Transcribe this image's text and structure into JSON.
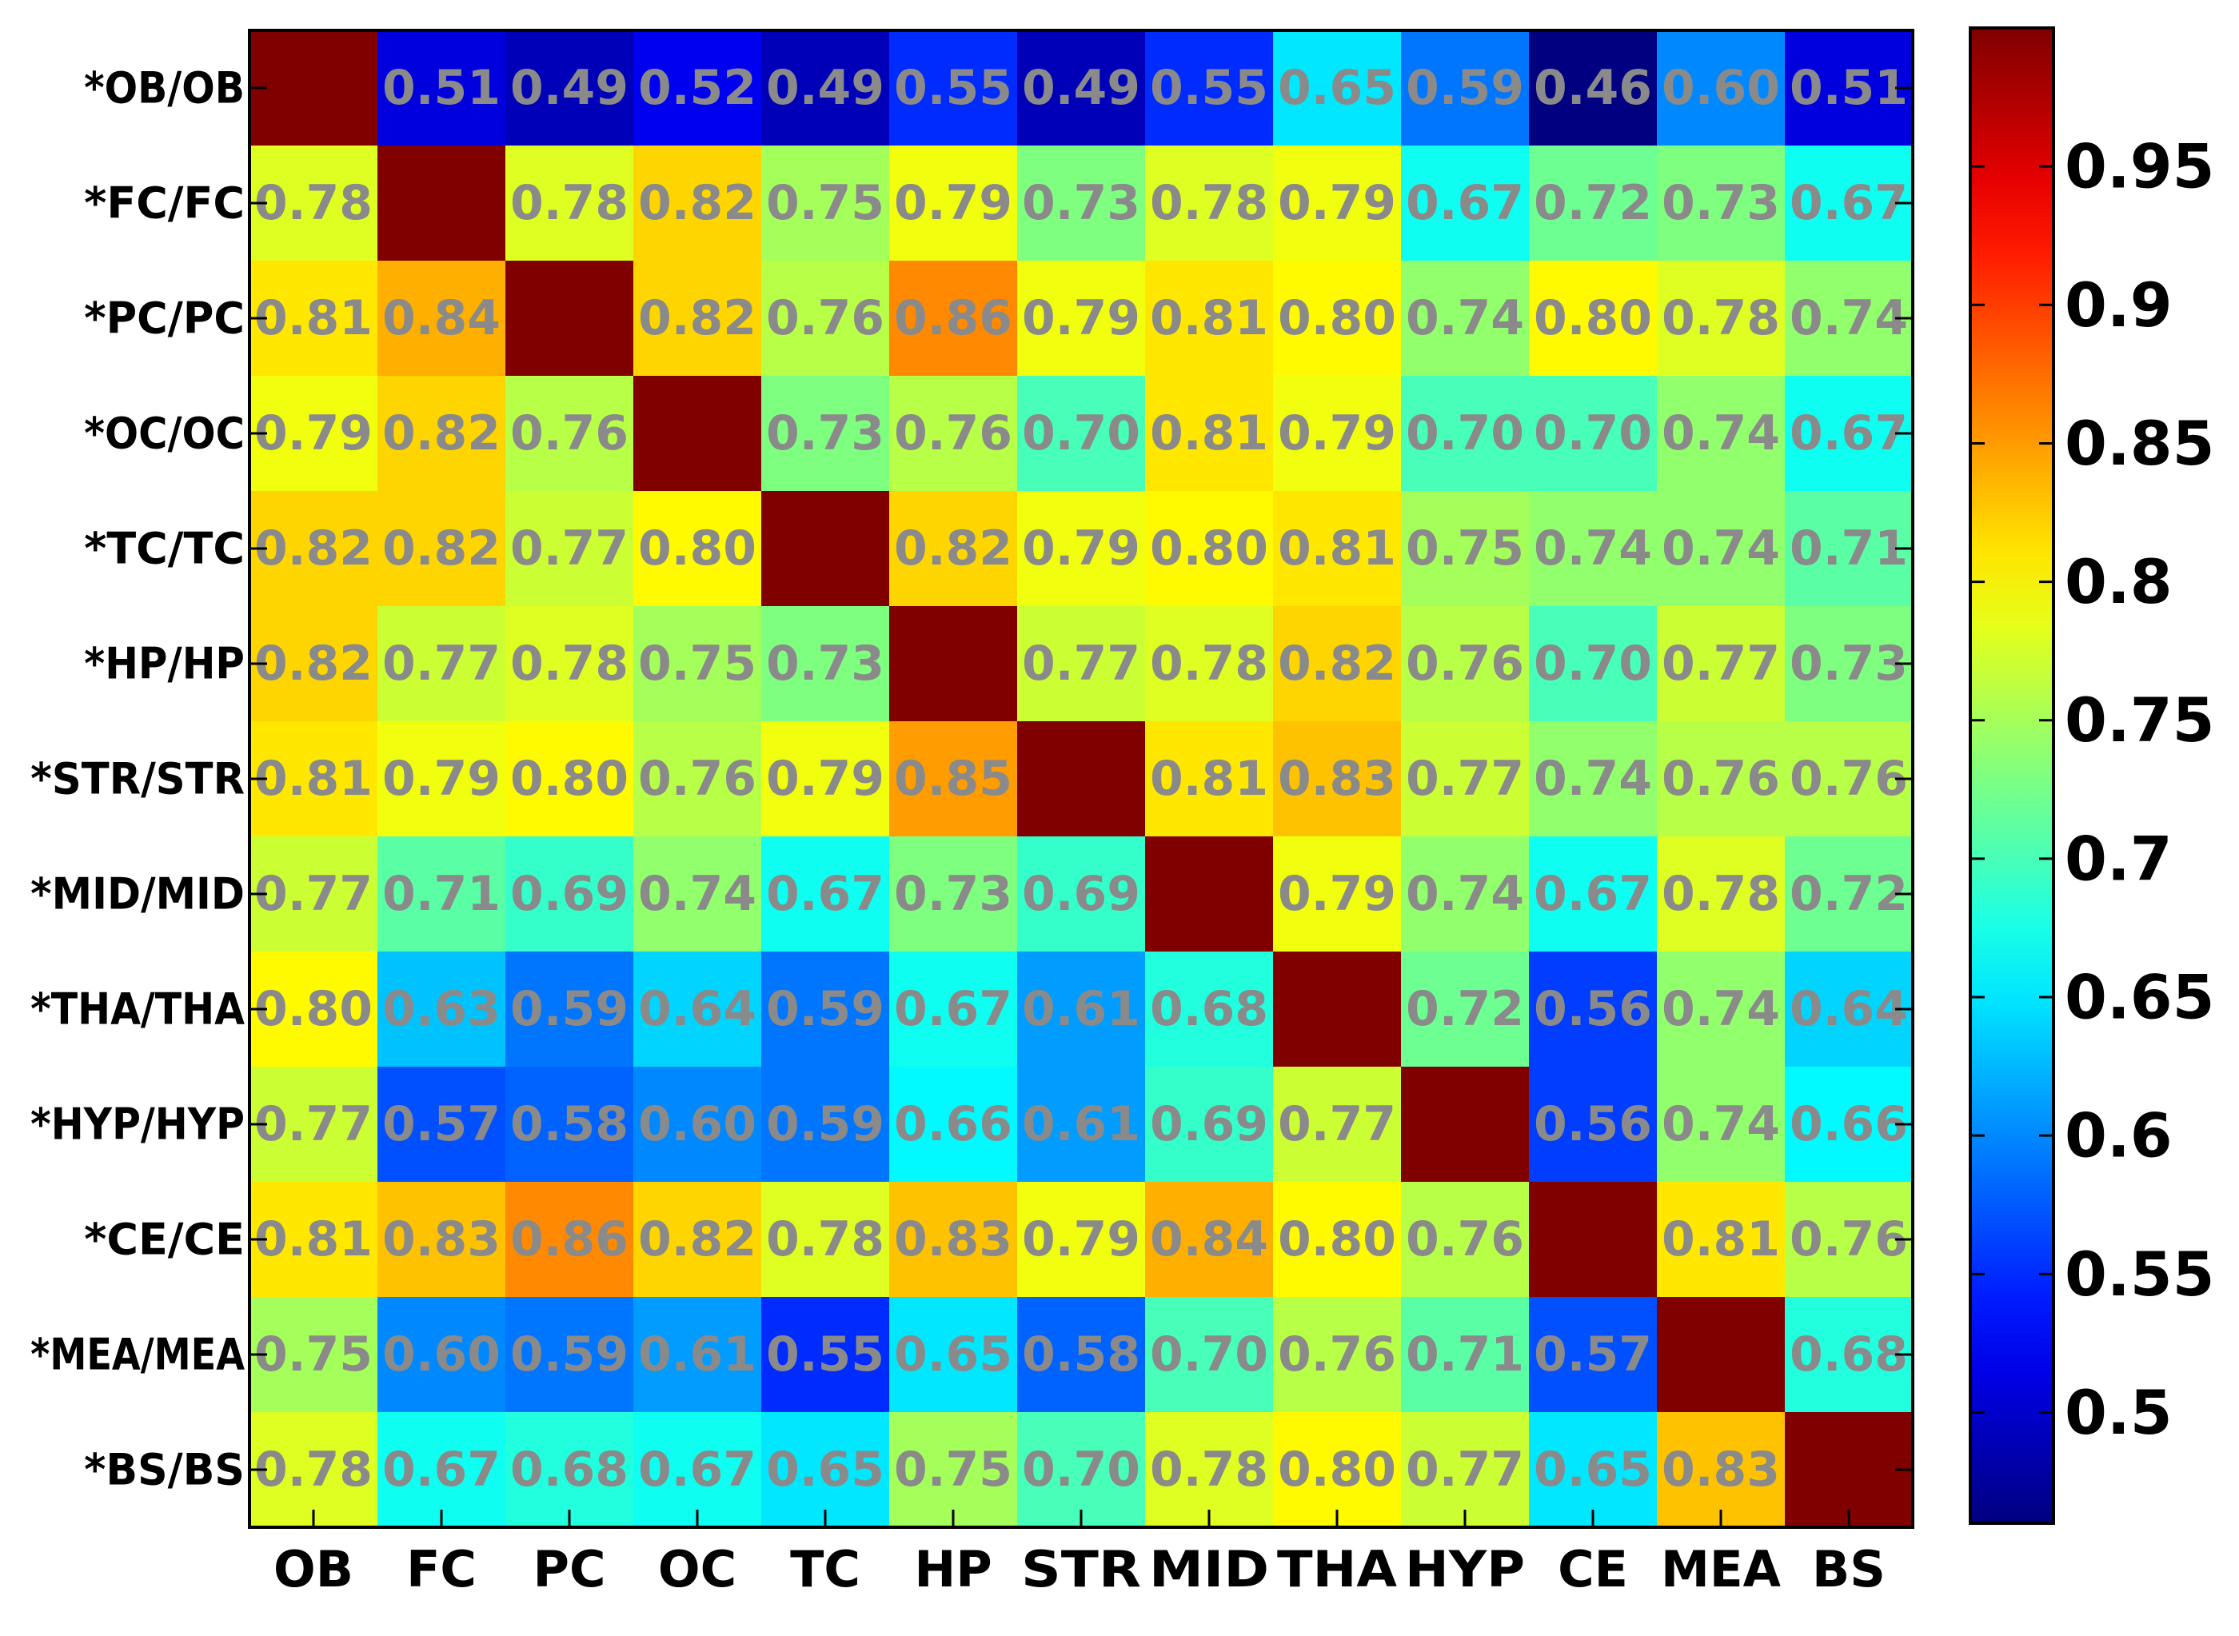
{
  "chart_data": {
    "type": "heatmap",
    "row_labels": [
      "*OB/OB",
      "*FC/FC",
      "*PC/PC",
      "*OC/OC",
      "*TC/TC",
      "*HP/HP",
      "*STR/STR",
      "*MID/MID",
      "*THA/THA",
      "*HYP/HYP",
      "*CE/CE",
      "*MEA/MEA",
      "*BS/BS"
    ],
    "col_labels": [
      "OB",
      "FC",
      "PC",
      "OC",
      "TC",
      "HP",
      "STR",
      "MID",
      "THA",
      "HYP",
      "CE",
      "MEA",
      "BS"
    ],
    "values": [
      [
        1.0,
        0.51,
        0.49,
        0.52,
        0.49,
        0.55,
        0.49,
        0.55,
        0.65,
        0.59,
        0.46,
        0.6,
        0.51
      ],
      [
        0.78,
        1.0,
        0.78,
        0.82,
        0.75,
        0.79,
        0.73,
        0.78,
        0.79,
        0.67,
        0.72,
        0.73,
        0.67
      ],
      [
        0.81,
        0.84,
        1.0,
        0.82,
        0.76,
        0.86,
        0.79,
        0.81,
        0.8,
        0.74,
        0.8,
        0.78,
        0.74
      ],
      [
        0.79,
        0.82,
        0.76,
        1.0,
        0.73,
        0.76,
        0.7,
        0.81,
        0.79,
        0.7,
        0.7,
        0.74,
        0.67
      ],
      [
        0.82,
        0.82,
        0.77,
        0.8,
        1.0,
        0.82,
        0.79,
        0.8,
        0.81,
        0.75,
        0.74,
        0.74,
        0.71
      ],
      [
        0.82,
        0.77,
        0.78,
        0.75,
        0.73,
        1.0,
        0.77,
        0.78,
        0.82,
        0.76,
        0.7,
        0.77,
        0.73
      ],
      [
        0.81,
        0.79,
        0.8,
        0.76,
        0.79,
        0.85,
        1.0,
        0.81,
        0.83,
        0.77,
        0.74,
        0.76,
        0.76
      ],
      [
        0.77,
        0.71,
        0.69,
        0.74,
        0.67,
        0.73,
        0.69,
        1.0,
        0.79,
        0.74,
        0.67,
        0.78,
        0.72
      ],
      [
        0.8,
        0.63,
        0.59,
        0.64,
        0.59,
        0.67,
        0.61,
        0.68,
        1.0,
        0.72,
        0.56,
        0.74,
        0.64
      ],
      [
        0.77,
        0.57,
        0.58,
        0.6,
        0.59,
        0.66,
        0.61,
        0.69,
        0.77,
        1.0,
        0.56,
        0.74,
        0.66
      ],
      [
        0.81,
        0.83,
        0.86,
        0.82,
        0.78,
        0.83,
        0.79,
        0.84,
        0.8,
        0.76,
        1.0,
        0.81,
        0.76
      ],
      [
        0.75,
        0.6,
        0.59,
        0.61,
        0.55,
        0.65,
        0.58,
        0.7,
        0.76,
        0.71,
        0.57,
        1.0,
        0.68
      ],
      [
        0.78,
        0.67,
        0.68,
        0.67,
        0.65,
        0.75,
        0.7,
        0.78,
        0.8,
        0.77,
        0.65,
        0.83,
        1.0
      ]
    ],
    "cell_labels": [
      [
        "",
        "0.51",
        "0.49",
        "0.52",
        "0.49",
        "0.55",
        "0.49",
        "0.55",
        "0.65",
        "0.59",
        "0.46",
        "0.60",
        "0.51"
      ],
      [
        "0.78",
        "",
        "0.78",
        "0.82",
        "0.75",
        "0.79",
        "0.73",
        "0.78",
        "0.79",
        "0.67",
        "0.72",
        "0.73",
        "0.67"
      ],
      [
        "0.81",
        "0.84",
        "",
        "0.82",
        "0.76",
        "0.86",
        "0.79",
        "0.81",
        "0.80",
        "0.74",
        "0.80",
        "0.78",
        "0.74"
      ],
      [
        "0.79",
        "0.82",
        "0.76",
        "",
        "0.73",
        "0.76",
        "0.70",
        "0.81",
        "0.79",
        "0.70",
        "0.70",
        "0.74",
        "0.67"
      ],
      [
        "0.82",
        "0.82",
        "0.77",
        "0.80",
        "",
        "0.82",
        "0.79",
        "0.80",
        "0.81",
        "0.75",
        "0.74",
        "0.74",
        "0.71"
      ],
      [
        "0.82",
        "0.77",
        "0.78",
        "0.75",
        "0.73",
        "",
        "0.77",
        "0.78",
        "0.82",
        "0.76",
        "0.70",
        "0.77",
        "0.73"
      ],
      [
        "0.81",
        "0.79",
        "0.80",
        "0.76",
        "0.79",
        "0.85",
        "",
        "0.81",
        "0.83",
        "0.77",
        "0.74",
        "0.76",
        "0.76"
      ],
      [
        "0.77",
        "0.71",
        "0.69",
        "0.74",
        "0.67",
        "0.73",
        "0.69",
        "",
        "0.79",
        "0.74",
        "0.67",
        "0.78",
        "0.72"
      ],
      [
        "0.80",
        "0.63",
        "0.59",
        "0.64",
        "0.59",
        "0.67",
        "0.61",
        "0.68",
        "",
        "0.72",
        "0.56",
        "0.74",
        "0.64"
      ],
      [
        "0.77",
        "0.57",
        "0.58",
        "0.60",
        "0.59",
        "0.66",
        "0.61",
        "0.69",
        "0.77",
        "",
        "0.56",
        "0.74",
        "0.66"
      ],
      [
        "0.81",
        "0.83",
        "0.86",
        "0.82",
        "0.78",
        "0.83",
        "0.79",
        "0.84",
        "0.80",
        "0.76",
        "",
        "0.81",
        "0.76"
      ],
      [
        "0.75",
        "0.60",
        "0.59",
        "0.61",
        "0.55",
        "0.65",
        "0.58",
        "0.70",
        "0.76",
        "0.71",
        "0.57",
        "",
        "0.68"
      ],
      [
        "0.78",
        "0.67",
        "0.68",
        "0.67",
        "0.65",
        "0.75",
        "0.70",
        "0.78",
        "0.80",
        "0.77",
        "0.65",
        "0.83",
        ""
      ]
    ],
    "colormap": "jet",
    "color_range": [
      0.46,
      1.0
    ],
    "colorbar_ticks": [
      0.5,
      0.55,
      0.6,
      0.65,
      0.7,
      0.75,
      0.8,
      0.85,
      0.9,
      0.95
    ],
    "colorbar_tick_labels": [
      "0.5",
      "0.55",
      "0.6",
      "0.65",
      "0.7",
      "0.75",
      "0.8",
      "0.85",
      "0.9",
      "0.95"
    ],
    "cell_text_color": "#8a8a8a",
    "title": "",
    "xlabel": "",
    "ylabel": ""
  }
}
